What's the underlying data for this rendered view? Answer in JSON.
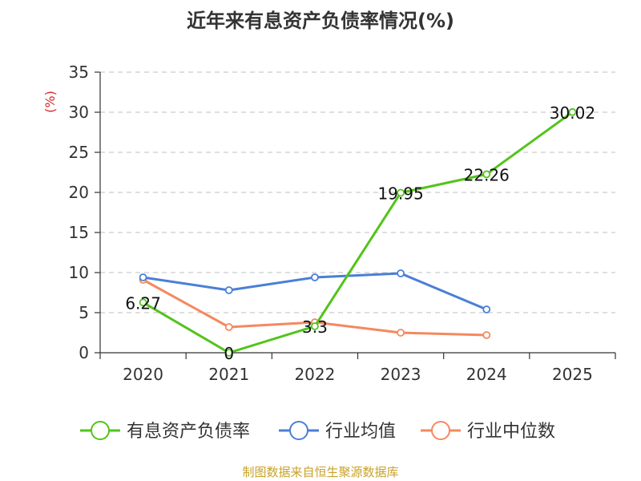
{
  "title": "近年来有息资产负债率情况(%)",
  "footer": "制图数据来自恒生聚源数据库",
  "chart_data": {
    "type": "line",
    "categories": [
      "2020",
      "2021",
      "2022",
      "2023",
      "2024",
      "2025"
    ],
    "y_unit": "(%)",
    "ylim": [
      0,
      35
    ],
    "yticks": [
      0,
      5,
      10,
      15,
      20,
      25,
      30,
      35
    ],
    "grid": true,
    "legend_position": "bottom",
    "series": [
      {
        "name": "有息资产负债率",
        "color": "#52c41a",
        "values": [
          6.27,
          0,
          3.3,
          19.95,
          22.26,
          30.02
        ],
        "labels": [
          "6.27",
          "0",
          "3.3",
          "19.95",
          "22.26",
          "30.02"
        ]
      },
      {
        "name": "行业均值",
        "color": "#4a7fd6",
        "values": [
          9.4,
          7.8,
          9.4,
          9.9,
          5.4,
          null
        ]
      },
      {
        "name": "行业中位数",
        "color": "#f4895f",
        "values": [
          9.1,
          3.2,
          3.8,
          2.5,
          2.2,
          null
        ]
      }
    ]
  }
}
